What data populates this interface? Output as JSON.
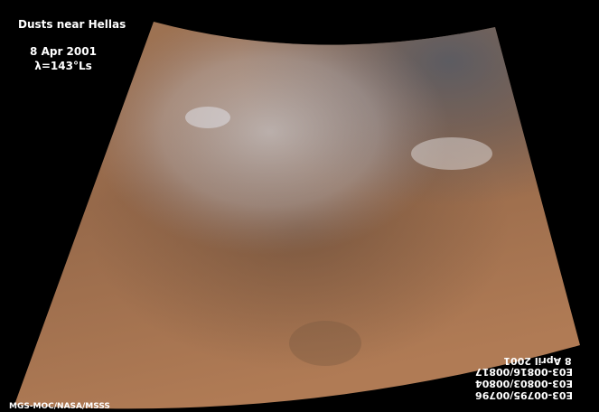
{
  "header": {
    "title": "Dusts near Hellas",
    "date": "8 Apr 2001",
    "season": "λ=143°Ls"
  },
  "credit": "MGS-MOC/NASA/MSSS",
  "frame_labels": [
    "8 April 2001",
    "E03-00816/00817",
    "E03-00803/00804",
    "E03-00795/00796"
  ]
}
